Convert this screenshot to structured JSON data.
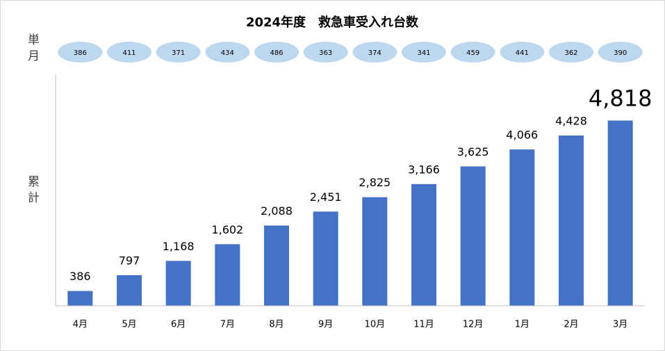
{
  "chart_data": {
    "type": "bar",
    "title": "2024年度　救急車受入れ台数",
    "categories": [
      "4月",
      "5月",
      "6月",
      "7月",
      "8月",
      "9月",
      "10月",
      "11月",
      "12月",
      "1月",
      "2月",
      "3月"
    ],
    "series": [
      {
        "name": "累計",
        "color": "#4472c4",
        "values": [
          386,
          797,
          1168,
          1602,
          2088,
          2451,
          2825,
          3166,
          3625,
          4066,
          4428,
          4818
        ],
        "value_labels": [
          "386",
          "797",
          "1,168",
          "1,602",
          "2,088",
          "2,451",
          "2,825",
          "3,166",
          "3,625",
          "4,066",
          "4,428",
          "4,818"
        ]
      },
      {
        "name": "単月",
        "color": "#bdd7ee",
        "values": [
          386,
          411,
          371,
          434,
          486,
          363,
          374,
          341,
          459,
          441,
          362,
          390
        ]
      }
    ],
    "ylim": [
      0,
      6000
    ]
  }
}
